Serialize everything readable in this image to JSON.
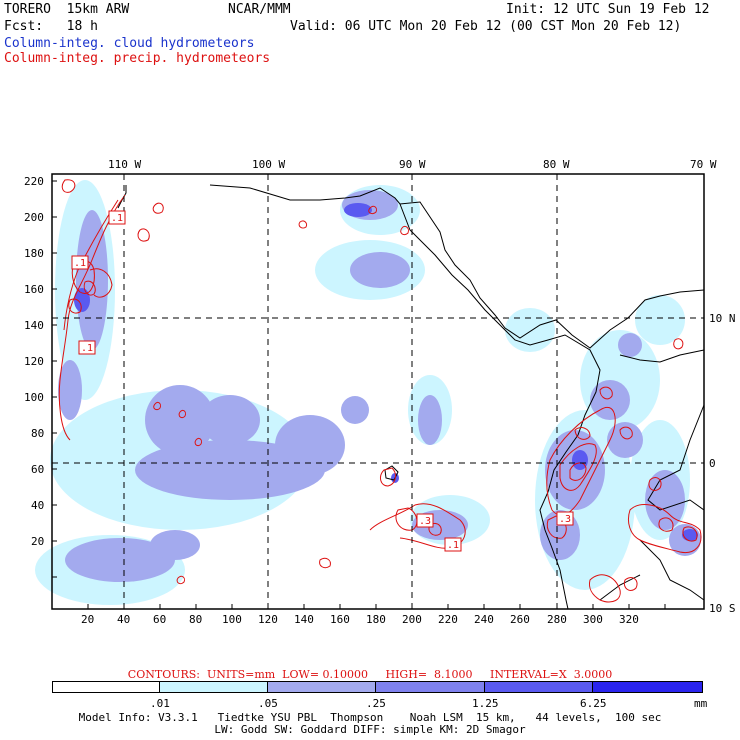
{
  "header": {
    "model": "TORERO  15km ARW",
    "center": "NCAR/MMM",
    "init": "Init: 12 UTC Sun 19 Feb 12",
    "fcst": "Fcst:   18 h",
    "valid": "Valid: 06 UTC Mon 20 Feb 12 (00 CST Mon 20 Feb 12)",
    "field_blue": "Column-integ. cloud hydrometeors",
    "field_red": "Column-integ. precip. hydrometeors"
  },
  "map": {
    "lon_labels": [
      "110 W",
      "100 W",
      "90 W",
      "80 W",
      "70 W"
    ],
    "lat_labels": [
      "10 N",
      "0",
      "10 S"
    ],
    "x_ticks": [
      "20",
      "40",
      "60",
      "80",
      "100",
      "120",
      "140",
      "160",
      "180",
      "200",
      "220",
      "240",
      "260",
      "280",
      "300",
      "320"
    ],
    "y_ticks": [
      "220",
      "200",
      "180",
      "160",
      "140",
      "120",
      "100",
      "80",
      "60",
      "40",
      "20"
    ],
    "contour_labels": [
      ".1",
      ".1",
      ".1",
      ".1",
      ".3",
      ".1",
      ".3"
    ]
  },
  "contour_info": "CONTOURS:  UNITS=mm  LOW= 0.10000     HIGH=  8.1000     INTERVAL=X  3.0000",
  "colorbar": {
    "bins": [
      "#ffffff",
      "#ccf5ff",
      "#a3aaee",
      "#7f82ee",
      "#5a5af0",
      "#2a24ee"
    ],
    "labels": [
      ".01",
      ".05",
      ".25",
      "1.25",
      "6.25"
    ],
    "unit": "mm"
  },
  "footer": {
    "line1": "Model Info: V3.3.1   Tiedtke YSU PBL  Thompson    Noah LSM  15 km,   44 levels,  100 sec",
    "line2": "LW: Godd SW: Goddard DIFF: simple KM: 2D Smagor"
  }
}
